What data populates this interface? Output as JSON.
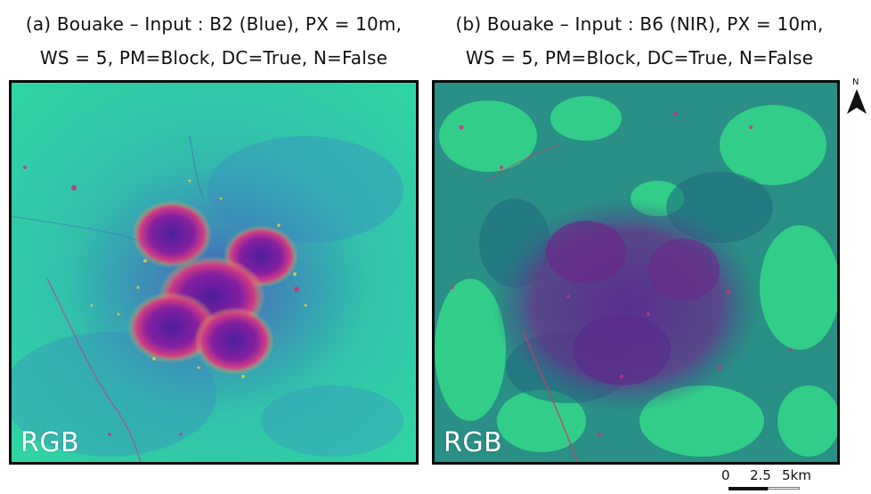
{
  "panel_a": {
    "title_line1": "(a) Bouake – Input : B2 (Blue), PX = 10m,",
    "title_line2": "WS = 5, PM=Block, DC=True, N=False",
    "overlay_label": "RGB",
    "base_color": "#2fd6a4",
    "urban_color": "#8a1aa0"
  },
  "panel_b": {
    "title_line1": "(b) Bouake – Input : B6 (NIR), PX = 10m,",
    "title_line2": "WS = 5, PM=Block, DC=True, N=False",
    "overlay_label": "RGB",
    "base_color": "#2a8f86",
    "urban_color": "#6a2a8a"
  },
  "north_arrow": {
    "label": "N"
  },
  "scale_bar": {
    "labels": [
      "0",
      "2.5",
      "5km"
    ]
  }
}
